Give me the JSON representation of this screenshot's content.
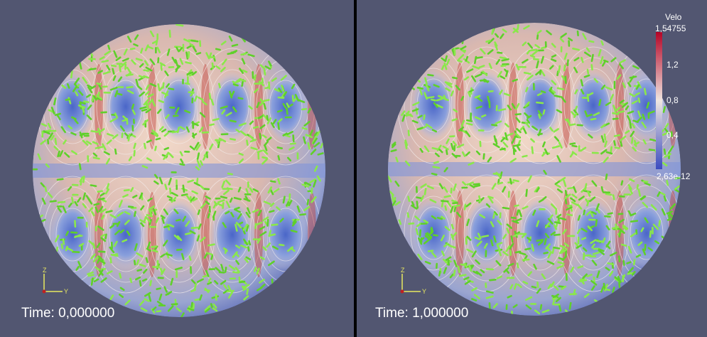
{
  "views": [
    {
      "time_label": "Time: 0,000000",
      "axes": {
        "z": "Z",
        "y": "Y"
      }
    },
    {
      "time_label": "Time: 1,000000",
      "axes": {
        "z": "Z",
        "y": "Y"
      }
    }
  ],
  "colorbar": {
    "title": "Velo",
    "labels": [
      "1,54755",
      "1,2",
      "0,8",
      "0,4",
      "2,63e-12"
    ]
  }
}
